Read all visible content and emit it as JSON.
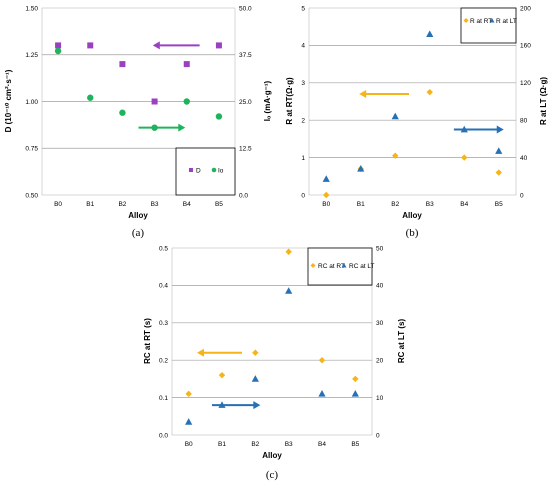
{
  "colors": {
    "purple": "#9a41c0",
    "green": "#1fb45c",
    "orange": "#f5b41a",
    "blue": "#2671b5",
    "grid": "#a0a0a0"
  },
  "chart_data": [
    {
      "type": "scatter",
      "caption": "(a)",
      "categories": [
        "B0",
        "B1",
        "B2",
        "B3",
        "B4",
        "B5"
      ],
      "xlabel": "Alloy",
      "ylabel_left": "D (10⁻¹⁰ cm²·s⁻¹)",
      "ylabel_right": "Iₒ (mA·g⁻¹)",
      "ylim_left": [
        0.5,
        1.5
      ],
      "ylim_right": [
        0,
        50
      ],
      "yticks_left": [
        "0.50",
        "0.75",
        "1.00",
        "1.25",
        "1.50"
      ],
      "yticks_right": [
        "0.0",
        "12.5",
        "25.0",
        "37.5",
        "50.0"
      ],
      "grid": true,
      "legend_position": "bottom-right",
      "series": [
        {
          "name": "D",
          "axis": "left",
          "marker": "square",
          "color": "#9a41c0",
          "values": [
            1.3,
            1.3,
            1.2,
            1.0,
            1.2,
            1.3
          ]
        },
        {
          "name": "Io",
          "axis": "right",
          "marker": "circle",
          "color": "#1fb45c",
          "values": [
            38.5,
            26.0,
            22.0,
            18.0,
            25.0,
            21.0
          ]
        }
      ],
      "annotations": [
        {
          "type": "arrow",
          "direction": "left",
          "color": "#9a41c0",
          "x": [
            3.6,
            4.9
          ],
          "y": 1.3,
          "axis": "left"
        },
        {
          "type": "arrow",
          "direction": "right",
          "color": "#1fb45c",
          "x": [
            3.0,
            4.3
          ],
          "y": 18.0,
          "axis": "right"
        }
      ]
    },
    {
      "type": "scatter",
      "caption": "(b)",
      "categories": [
        "B0",
        "B1",
        "B2",
        "B3",
        "B4",
        "B5"
      ],
      "xlabel": "Alloy",
      "ylabel_left": "R at RT(Ω·g)",
      "ylabel_right": "R at LT (Ω·g)",
      "ylim_left": [
        0,
        5
      ],
      "ylim_right": [
        0,
        200
      ],
      "yticks_left": [
        "0",
        "1",
        "2",
        "3",
        "4",
        "5"
      ],
      "yticks_right": [
        "0",
        "40",
        "80",
        "120",
        "160",
        "200"
      ],
      "grid": true,
      "legend_position": "top-right",
      "series": [
        {
          "name": "R at RT",
          "axis": "left",
          "marker": "diamond",
          "color": "#f5b41a",
          "values": [
            0.0,
            0.7,
            1.05,
            2.75,
            1.0,
            0.6
          ]
        },
        {
          "name": "R at LT",
          "axis": "right",
          "marker": "triangle",
          "color": "#2671b5",
          "values": [
            17,
            28,
            84,
            172,
            70,
            47
          ]
        }
      ],
      "annotations": [
        {
          "type": "arrow",
          "direction": "left",
          "color": "#f5b41a",
          "x": [
            1.6,
            2.9
          ],
          "y": 2.7,
          "axis": "left"
        },
        {
          "type": "arrow",
          "direction": "right",
          "color": "#2671b5",
          "x": [
            4.2,
            5.5
          ],
          "y": 70,
          "axis": "right"
        }
      ]
    },
    {
      "type": "scatter",
      "caption": "(c)",
      "categories": [
        "B0",
        "B1",
        "B2",
        "B3",
        "B4",
        "B5"
      ],
      "xlabel": "Alloy",
      "ylabel_left": "RC at RT (s)",
      "ylabel_right": "RC at LT (s)",
      "ylim_left": [
        0,
        0.5
      ],
      "ylim_right": [
        0,
        50
      ],
      "yticks_left": [
        "0.0",
        "0.1",
        "0.2",
        "0.3",
        "0.4",
        "0.5"
      ],
      "yticks_right": [
        "0",
        "10",
        "20",
        "30",
        "40",
        "50"
      ],
      "grid": true,
      "legend_position": "top-right",
      "series": [
        {
          "name": "RC at RT",
          "axis": "left",
          "marker": "diamond",
          "color": "#f5b41a",
          "values": [
            0.11,
            0.16,
            0.22,
            0.49,
            0.2,
            0.15
          ]
        },
        {
          "name": "RC at LT",
          "axis": "right",
          "marker": "triangle",
          "color": "#2671b5",
          "values": [
            3.5,
            8.0,
            15.0,
            38.5,
            11.0,
            11.0
          ]
        }
      ],
      "annotations": [
        {
          "type": "arrow",
          "direction": "left",
          "color": "#f5b41a",
          "x": [
            0.9,
            2.1
          ],
          "y": 0.22,
          "axis": "left"
        },
        {
          "type": "arrow",
          "direction": "right",
          "color": "#2671b5",
          "x": [
            1.2,
            2.5
          ],
          "y": 8.0,
          "axis": "right"
        }
      ]
    }
  ]
}
